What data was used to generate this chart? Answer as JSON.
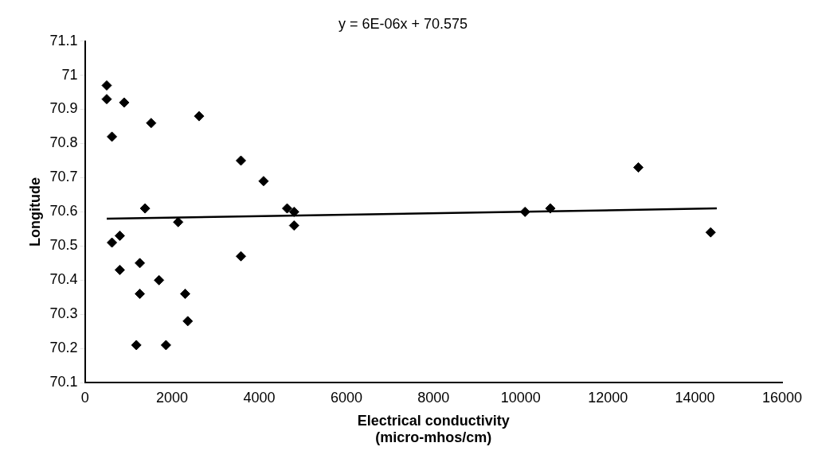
{
  "chart_data": {
    "type": "scatter",
    "title": "y = 6E-06x + 70.575",
    "xlabel": "Electrical conductivity\n(micro-mhos/cm)",
    "ylabel": "Longitude",
    "xlim": [
      0,
      16000
    ],
    "xticks": [
      0,
      2000,
      4000,
      6000,
      8000,
      10000,
      12000,
      14000,
      16000
    ],
    "ylim": [
      70.1,
      71.1
    ],
    "yticks": [
      70.1,
      70.2,
      70.3,
      70.4,
      70.5,
      70.6,
      70.7,
      70.8,
      70.9,
      71,
      71.1
    ],
    "grid": false,
    "legend": false,
    "marker": "diamond",
    "series": [
      {
        "color": "#000000",
        "x": [
          500,
          500,
          900,
          620,
          1520,
          2620,
          1380,
          2140,
          3580,
          3580,
          4100,
          4640,
          4800,
          4800,
          620,
          800,
          800,
          1260,
          1260,
          1700,
          2300,
          2360,
          1180,
          1860,
          10100,
          10680,
          12700,
          14360
        ],
        "values": [
          70.97,
          70.93,
          70.92,
          70.82,
          70.86,
          70.88,
          70.61,
          70.57,
          70.47,
          70.75,
          70.69,
          70.61,
          70.6,
          70.56,
          70.51,
          70.53,
          70.43,
          70.45,
          70.36,
          70.4,
          70.36,
          70.28,
          70.21,
          70.21,
          70.6,
          70.61,
          70.73,
          70.54
        ]
      },
      {
        "type": "line",
        "color": "#000000",
        "marker": "none",
        "x": [
          500,
          14500
        ],
        "values": [
          70.58,
          70.61
        ]
      }
    ]
  }
}
